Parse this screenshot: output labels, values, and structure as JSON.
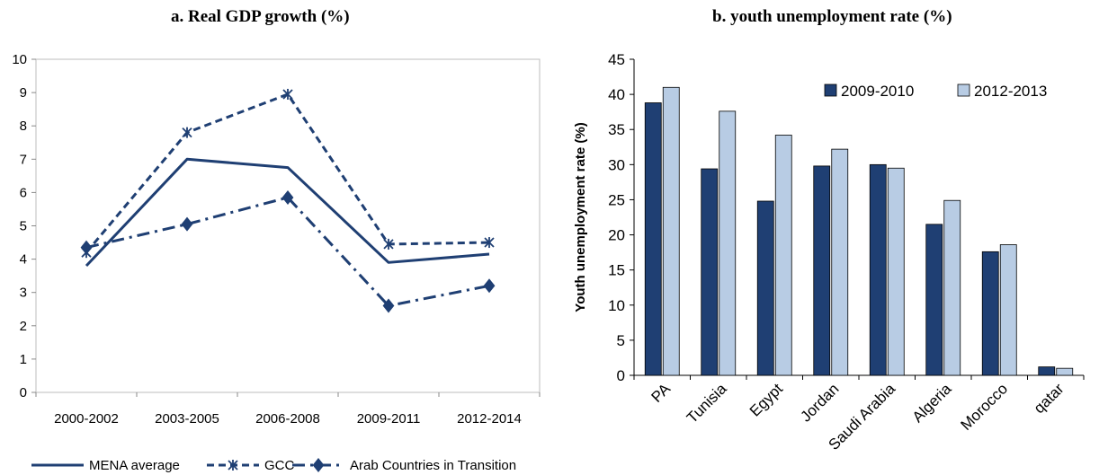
{
  "chart_data": [
    {
      "type": "line",
      "title": "a. Real GDP growth (%)",
      "categories": [
        "2000-2002",
        "2003-2005",
        "2006-2008",
        "2009-2011",
        "2012-2014"
      ],
      "ylim": [
        0,
        10
      ],
      "yticks": [
        "0",
        "1",
        "2",
        "3",
        "4",
        "5",
        "6",
        "7",
        "8",
        "9",
        "10"
      ],
      "grid": false,
      "legend_position": "bottom",
      "series": [
        {
          "name": "MENA average",
          "values": [
            3.8,
            7.0,
            6.75,
            3.9,
            4.15
          ],
          "style": "solid",
          "marker": "none",
          "color": "#1f3f73"
        },
        {
          "name": "GCC",
          "values": [
            4.2,
            7.8,
            8.95,
            4.45,
            4.5
          ],
          "style": "dashed",
          "marker": "asterisk",
          "color": "#1f3f73"
        },
        {
          "name": "Arab Countries in Transition",
          "values": [
            4.35,
            5.05,
            5.85,
            2.6,
            3.2
          ],
          "style": "dashdot",
          "marker": "diamond",
          "color": "#1f3f73"
        }
      ]
    },
    {
      "type": "bar",
      "title": "b. youth unemployment rate (%)",
      "ylabel": "Youth unemployment rate (%)",
      "categories": [
        "PA",
        "Tunisia",
        "Egypt",
        "Jordan",
        "Saudi Arabia",
        "Algeria",
        "Morocco",
        "qatar"
      ],
      "ylim": [
        0,
        45
      ],
      "yticks": [
        "0",
        "5",
        "10",
        "15",
        "20",
        "25",
        "30",
        "35",
        "40",
        "45"
      ],
      "grid": false,
      "legend_position": "top-right",
      "series": [
        {
          "name": "2009-2010",
          "values": [
            38.8,
            29.4,
            24.8,
            29.8,
            30.0,
            21.5,
            17.6,
            1.2
          ],
          "color": "#1f3f73"
        },
        {
          "name": "2012-2013",
          "values": [
            41.0,
            37.6,
            34.2,
            32.2,
            29.5,
            24.9,
            18.6,
            1.0
          ],
          "color": "#b8cce4"
        }
      ]
    }
  ]
}
